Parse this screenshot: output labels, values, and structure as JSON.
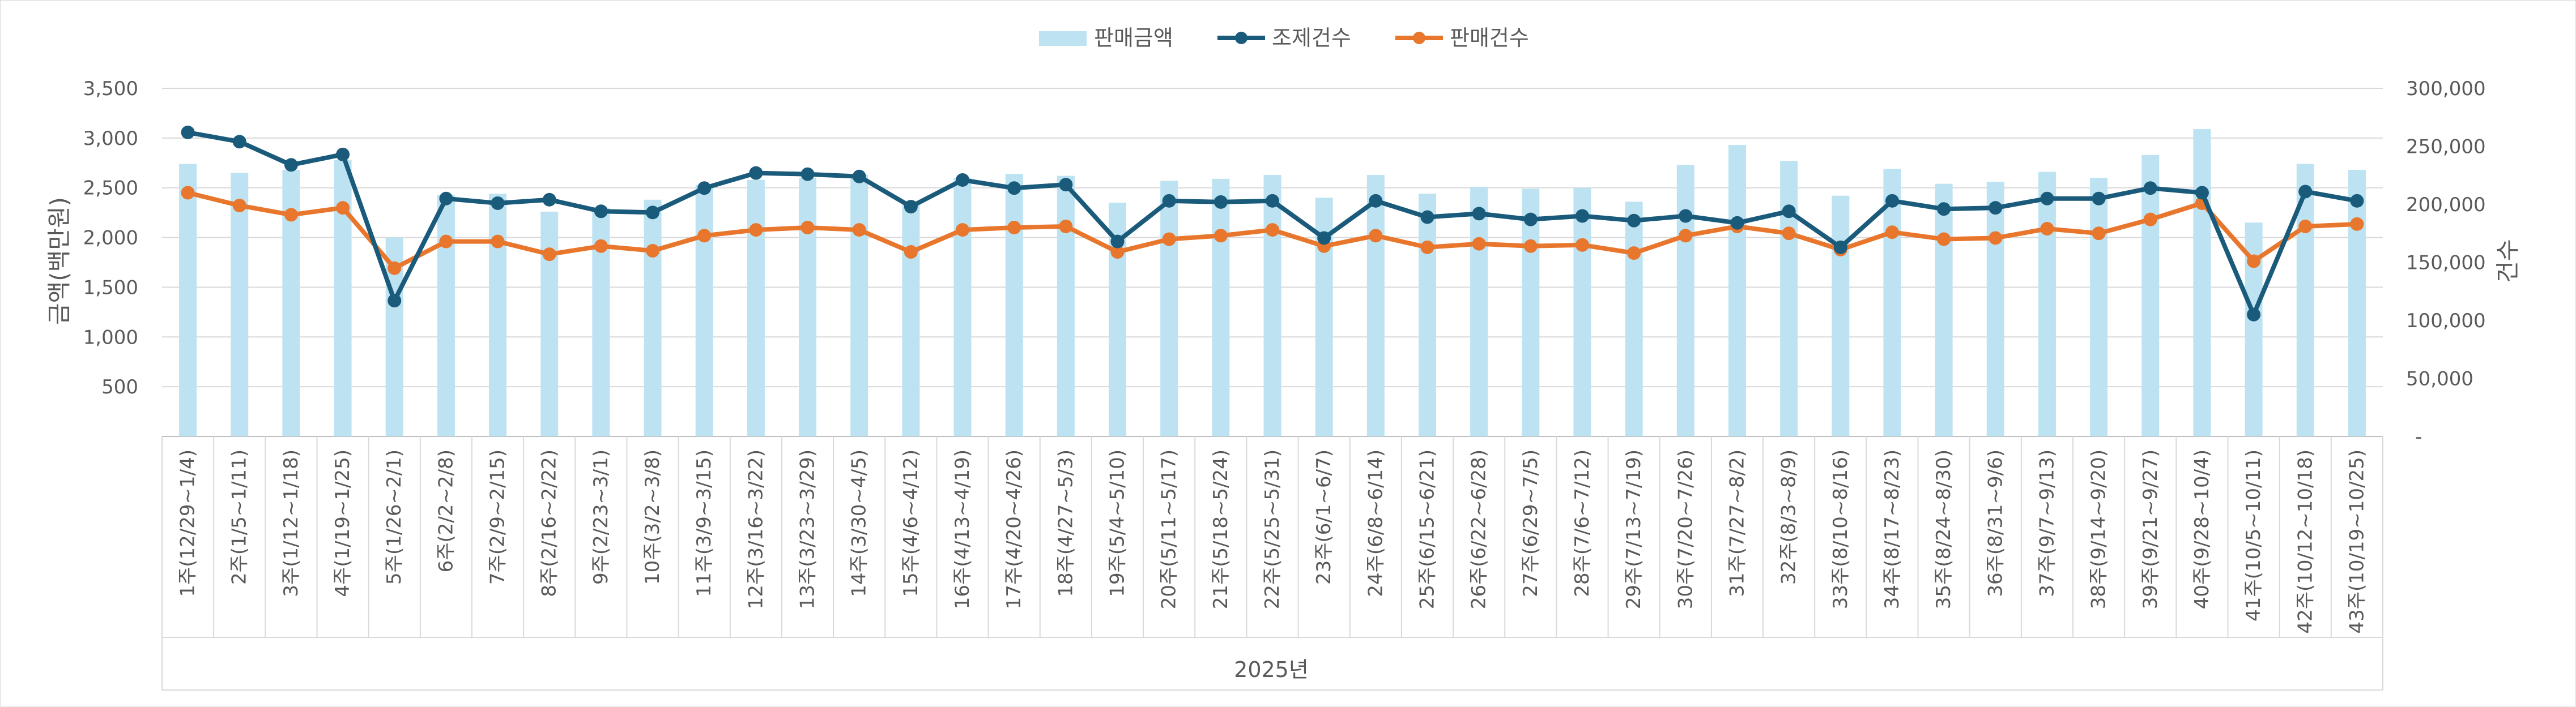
{
  "chart_data": {
    "type": "bar+line",
    "xlabel": "2025년",
    "ylabel_left": "금액(백만원)",
    "ylabel_right": "건수",
    "ylim_left": [
      0,
      3500
    ],
    "ylim_right": [
      0,
      300000
    ],
    "yticks_left": [
      "500",
      "1,000",
      "1,500",
      "2,000",
      "2,500",
      "3,000",
      "3,500"
    ],
    "yticks_right": [
      "-",
      "50,000",
      "100,000",
      "150,000",
      "200,000",
      "250,000",
      "300,000"
    ],
    "legend": [
      "판매금액",
      "조제건수",
      "판매건수"
    ],
    "colors": {
      "bar": "#bde3f3",
      "line1": "#1a5a7a",
      "line2": "#e8762c",
      "grid": "#d9d9d9"
    },
    "categories": [
      "1주(12/29~1/4)",
      "2주(1/5~1/11)",
      "3주(1/12~1/18)",
      "4주(1/19~1/25)",
      "5주(1/26~2/1)",
      "6주(2/2~2/8)",
      "7주(2/9~2/15)",
      "8주(2/16~2/22)",
      "9주(2/23~3/1)",
      "10주(3/2~3/8)",
      "11주(3/9~3/15)",
      "12주(3/16~3/22)",
      "13주(3/23~3/29)",
      "14주(3/30~4/5)",
      "15주(4/6~4/12)",
      "16주(4/13~4/19)",
      "17주(4/20~4/26)",
      "18주(4/27~5/3)",
      "19주(5/4~5/10)",
      "20주(5/11~5/17)",
      "21주(5/18~5/24)",
      "22주(5/25~5/31)",
      "23주(6/1~6/7)",
      "24주(6/8~6/14)",
      "25주(6/15~6/21)",
      "26주(6/22~6/28)",
      "27주(6/29~7/5)",
      "28주(7/6~7/12)",
      "29주(7/13~7/19)",
      "30주(7/20~7/26)",
      "31주(7/27~8/2)",
      "32주(8/3~8/9)",
      "33주(8/10~8/16)",
      "34주(8/17~8/23)",
      "35주(8/24~8/30)",
      "36주(8/31~9/6)",
      "37주(9/7~9/13)",
      "38주(9/14~9/20)",
      "39주(9/21~9/27)",
      "40주(9/28~10/4)",
      "41주(10/5~10/11)",
      "42주(10/12~10/18)",
      "43주(10/19~10/25)"
    ],
    "series": [
      {
        "name": "판매금액",
        "type": "bar",
        "axis": "left",
        "values": [
          2740,
          2650,
          2680,
          2780,
          2000,
          2430,
          2440,
          2260,
          2300,
          2380,
          2530,
          2580,
          2600,
          2630,
          2330,
          2600,
          2640,
          2620,
          2350,
          2570,
          2590,
          2630,
          2400,
          2630,
          2440,
          2510,
          2490,
          2500,
          2360,
          2730,
          2930,
          2770,
          2420,
          2690,
          2540,
          2560,
          2660,
          2600,
          2830,
          3090,
          2150,
          2740,
          2680
        ]
      },
      {
        "name": "조제건수",
        "type": "line",
        "axis": "right",
        "values": [
          262000,
          254000,
          234000,
          243000,
          117000,
          205000,
          201000,
          204000,
          194000,
          193000,
          214000,
          227000,
          226000,
          224000,
          198000,
          221000,
          214000,
          217000,
          168000,
          203000,
          202000,
          203000,
          171000,
          203000,
          189000,
          192000,
          187000,
          190000,
          186000,
          190000,
          184000,
          194000,
          163000,
          203000,
          196000,
          197000,
          205000,
          205000,
          214000,
          210000,
          105000,
          211000,
          203000
        ]
      },
      {
        "name": "판매건수",
        "type": "line",
        "axis": "right",
        "values": [
          210000,
          199000,
          191000,
          197000,
          145000,
          168000,
          168000,
          157000,
          164000,
          160000,
          173000,
          178000,
          180000,
          178000,
          159000,
          178000,
          180000,
          181000,
          159000,
          170000,
          173000,
          178000,
          164000,
          173000,
          163000,
          166000,
          164000,
          165000,
          158000,
          173000,
          181000,
          175000,
          161000,
          176000,
          170000,
          171000,
          179000,
          175000,
          187000,
          201000,
          151000,
          181000,
          183000
        ]
      }
    ]
  }
}
